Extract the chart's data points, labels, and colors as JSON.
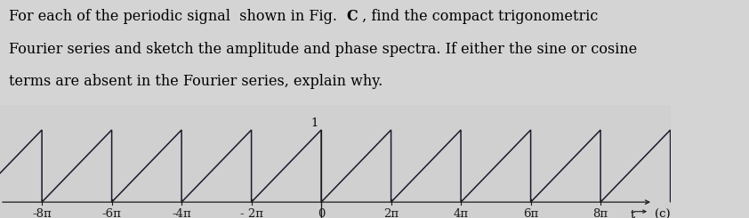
{
  "text_before": "For each of the periodic signal  shown in Fig.  ",
  "text_bold": "C",
  "text_after": " , find the compact trigonometric",
  "text_line2": "Fourier series and sketch the amplitude and phase spectra. If either the sine or cosine",
  "text_line3": "terms are absent in the Fourier series, explain why.",
  "period_pi_mult": 2,
  "amplitude": 1.0,
  "x_tick_pi_vals": [
    -8,
    -6,
    -4,
    -2,
    0,
    2,
    4,
    6,
    8
  ],
  "x_tick_labels": [
    "-8π",
    "-6π",
    "-4π",
    "- 2π",
    "0",
    "2π",
    "4π",
    "6π",
    "8π"
  ],
  "y_label_1": "1",
  "label_c": "(c)",
  "label_t_arrow": "t",
  "bg_top": "#d4d4d4",
  "bg_plot": "#d0d0d0",
  "wave_color": "#1a1a2e",
  "axis_color": "#1a1a1a",
  "tick_label_color": "#1a1a1a",
  "font_size_text": 11.5,
  "font_size_tick": 9.5,
  "font_size_label": 9.5,
  "line_width": 1.1,
  "num_periods": 9,
  "xlim_min_pi": -9.2,
  "xlim_max_pi": 10.0,
  "ylim_min": -0.22,
  "ylim_max": 1.35
}
